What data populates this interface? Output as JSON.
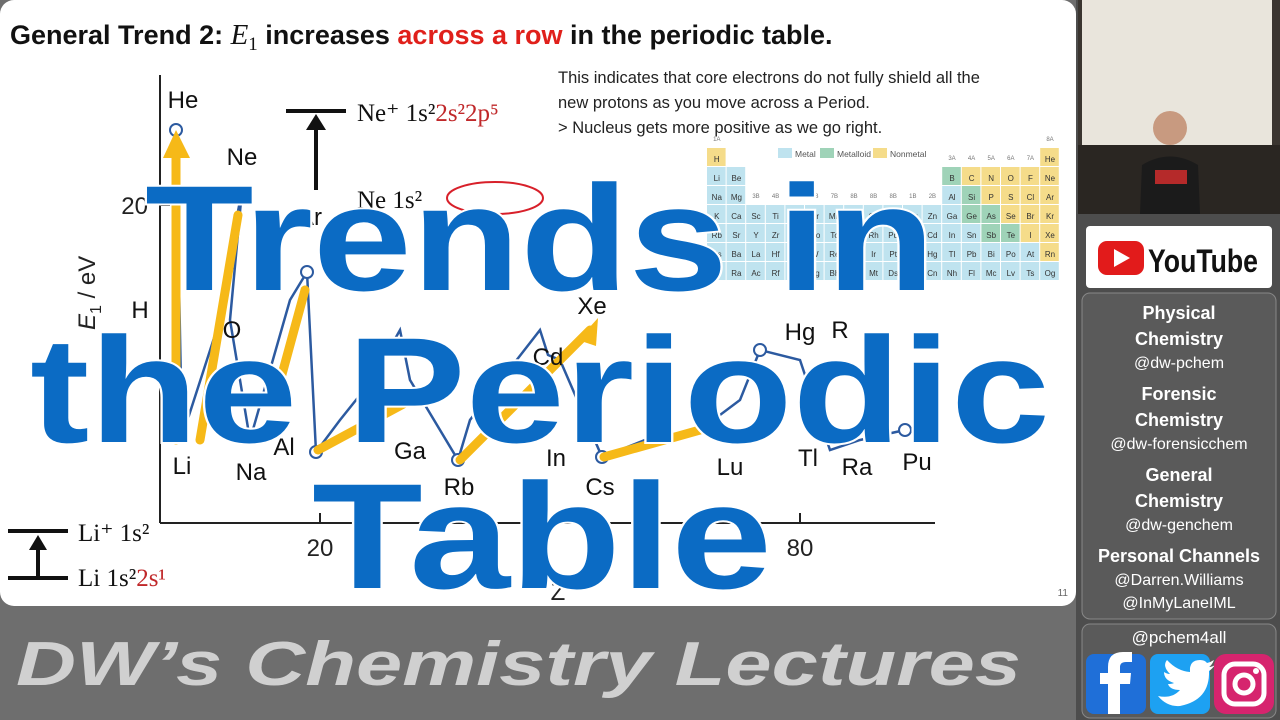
{
  "slide": {
    "title": {
      "prefix": "General Trend 2: ",
      "symbol": "E",
      "subscript": "1",
      "middle": " increases ",
      "highlight": "across a row",
      "suffix": " in the periodic table."
    },
    "note": [
      "This indicates that core electrons do not fully shield all the",
      "new protons as you move across a Period.",
      "> Nucleus gets more positive as we go right."
    ],
    "levels": {
      "ne_ion": [
        "Ne⁺ 1s²",
        "2s²2p⁵"
      ],
      "ne_atom": "Ne 1s²",
      "li_ion": "Li⁺ 1s²",
      "li_atom": [
        "Li 1s²",
        "2s¹"
      ]
    },
    "plot": {
      "y_symbol": "E",
      "y_sub": "1",
      "y_unit": " / eV",
      "y_tick": "20",
      "x_ticks": [
        "20",
        "80"
      ],
      "x_label": "Z",
      "elements": [
        "He",
        "Ne",
        "Ar",
        "H",
        "O",
        "Xe",
        "Hg",
        "R",
        "Cd",
        "Li",
        "Na",
        "Al",
        "Ga",
        "Rb",
        "In",
        "Cs",
        "Lu",
        "Tl",
        "Ra",
        "Pu"
      ]
    },
    "page_number": "11",
    "periodic_table": {
      "legend": [
        "Metal",
        "Metalloid",
        "Nonmetal"
      ],
      "groups": [
        "1A",
        "2A",
        "3B",
        "4B",
        "5B",
        "6B",
        "7B",
        "8B",
        "8B",
        "8B",
        "1B",
        "2B",
        "3A",
        "4A",
        "5A",
        "6A",
        "7A",
        "8A"
      ],
      "rows": [
        [
          "H",
          null,
          null,
          null,
          null,
          null,
          null,
          null,
          null,
          null,
          null,
          null,
          null,
          null,
          null,
          null,
          null,
          "He"
        ],
        [
          "Li",
          "Be",
          null,
          null,
          null,
          null,
          null,
          null,
          null,
          null,
          null,
          null,
          "B",
          "C",
          "N",
          "O",
          "F",
          "Ne"
        ],
        [
          "Na",
          "Mg",
          null,
          null,
          null,
          null,
          null,
          null,
          null,
          null,
          null,
          null,
          "Al",
          "Si",
          "P",
          "S",
          "Cl",
          "Ar"
        ],
        [
          "K",
          "Ca",
          "Sc",
          "Ti",
          "V",
          "Cr",
          "Mn",
          "Fe",
          "Co",
          "Ni",
          "Cu",
          "Zn",
          "Ga",
          "Ge",
          "As",
          "Se",
          "Br",
          "Kr"
        ],
        [
          "Rb",
          "Sr",
          "Y",
          "Zr",
          "Nb",
          "Mo",
          "Tc",
          "Ru",
          "Rh",
          "Pd",
          "Ag",
          "Cd",
          "In",
          "Sn",
          "Sb",
          "Te",
          "I",
          "Xe"
        ],
        [
          "Cs",
          "Ba",
          "La",
          "Hf",
          "Ta",
          "W",
          "Re",
          "Os",
          "Ir",
          "Pt",
          "Au",
          "Hg",
          "Tl",
          "Pb",
          "Bi",
          "Po",
          "At",
          "Rn"
        ],
        [
          "Fr",
          "Ra",
          "Ac",
          "Rf",
          "Db",
          "Sg",
          "Bh",
          "Hs",
          "Mt",
          "Ds",
          "Rg",
          "Cn",
          "Nh",
          "Fl",
          "Mc",
          "Lv",
          "Ts",
          "Og"
        ]
      ]
    }
  },
  "overlay": {
    "lines": [
      "Trends in",
      "the Periodic",
      "Table"
    ]
  },
  "banner": "DW’s Chemistry Lectures",
  "sidebar": {
    "youtube": "YouTube",
    "channels": [
      {
        "name": [
          "Physical",
          "Chemistry"
        ],
        "handles": [
          "@dw-pchem"
        ]
      },
      {
        "name": [
          "Forensic",
          "Chemistry"
        ],
        "handles": [
          "@dw-forensicchem"
        ]
      },
      {
        "name": [
          "General",
          "Chemistry"
        ],
        "handles": [
          "@dw-genchem"
        ]
      },
      {
        "name": [
          "Personal Channels"
        ],
        "handles": [
          "@Darren.Williams",
          "@InMyLaneIML"
        ]
      }
    ],
    "social": "@pchem4all"
  }
}
